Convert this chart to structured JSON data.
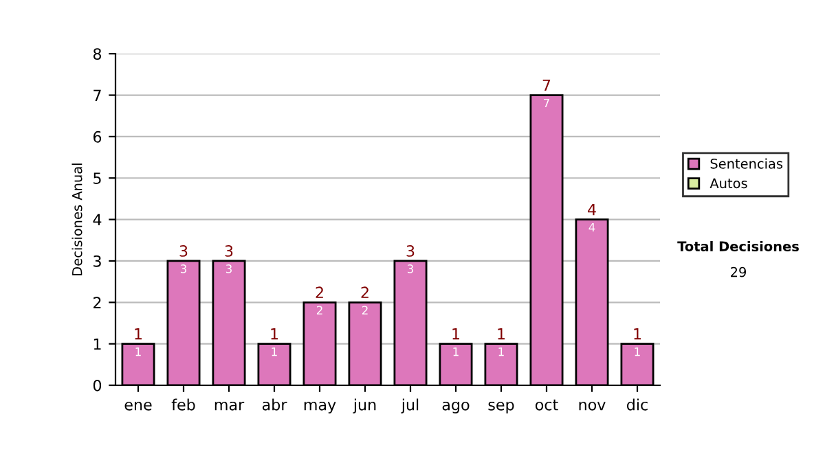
{
  "chart_data": {
    "type": "bar",
    "ylabel": "Decisiones Anual",
    "stacked": true,
    "categories": [
      "ene",
      "feb",
      "mar",
      "abr",
      "may",
      "jun",
      "jul",
      "ago",
      "sep",
      "oct",
      "nov",
      "dic"
    ],
    "series": [
      {
        "name": "Sentencias",
        "color": "#dd77bb",
        "values": [
          1,
          3,
          3,
          1,
          2,
          2,
          3,
          1,
          1,
          7,
          4,
          1
        ]
      },
      {
        "name": "Autos",
        "color": "#d8eca0",
        "values": [
          null,
          null,
          null,
          null,
          null,
          null,
          null,
          null,
          null,
          null,
          null,
          null
        ]
      }
    ],
    "totals": [
      "1",
      "3",
      "3",
      "1",
      "2",
      "2",
      "3",
      "1",
      "1",
      "7",
      "4",
      "1"
    ],
    "data_labels": true,
    "ylim": [
      0,
      8
    ],
    "yticks": [
      0,
      1,
      2,
      3,
      4,
      5,
      6,
      7,
      8
    ],
    "grid": "y",
    "legend": "right",
    "annotations": [
      "Total Decisiones",
      "29"
    ]
  }
}
